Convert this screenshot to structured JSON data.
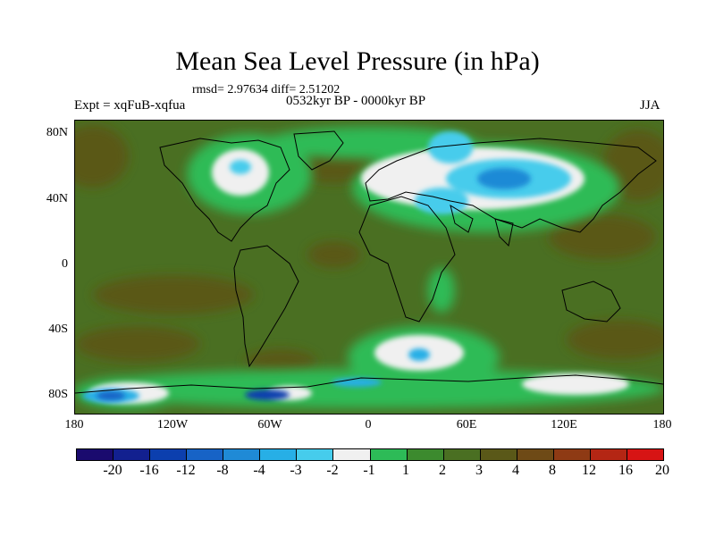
{
  "title": "Mean Sea Level Pressure (in hPa)",
  "stats": "rmsd= 2.97634 diff= 2.51202",
  "experiment": "Expt = xqFuB-xqfua",
  "period": "0532kyr BP - 0000kyr BP",
  "season": "JJA",
  "lat_labels": [
    "80N",
    "40N",
    "0",
    "40S",
    "80S"
  ],
  "lon_labels": [
    "180",
    "120W",
    "60W",
    "0",
    "60E",
    "120E",
    "180"
  ],
  "colorbar": {
    "colors": [
      "#1a0a6e",
      "#12208f",
      "#0c3fae",
      "#1763c6",
      "#1f8ad6",
      "#27afe6",
      "#46ccec",
      "#f0f0f0",
      "#2dbb57",
      "#3c8a2e",
      "#4a6f22",
      "#5a5818",
      "#6e4a16",
      "#8e3a14",
      "#b42614",
      "#d71414"
    ],
    "labels": [
      "-20",
      "-16",
      "-12",
      "-8",
      "-4",
      "-3",
      "-2",
      "-1",
      "1",
      "2",
      "3",
      "4",
      "8",
      "12",
      "16",
      "20"
    ]
  }
}
